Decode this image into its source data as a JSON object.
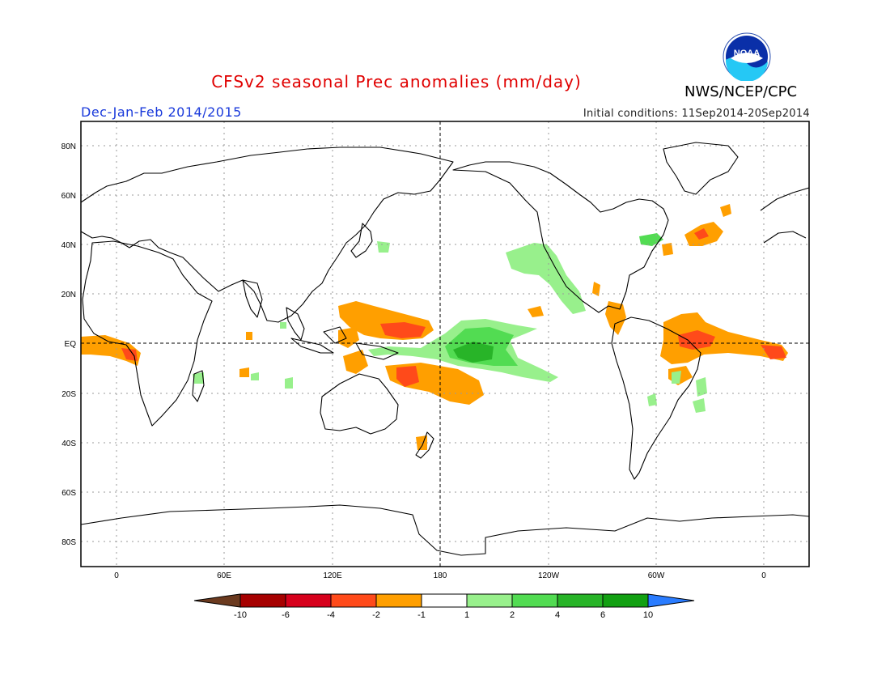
{
  "header": {
    "title": "CFSv2 seasonal Prec anomalies (mm/day)",
    "agency": "NWS/NCEP/CPC",
    "logo_text": "NOAA",
    "period": "Dec-Jan-Feb 2014/2015",
    "initial_conditions": "Initial conditions: 11Sep2014-20Sep2014"
  },
  "map": {
    "lat_labels": [
      "80N",
      "60N",
      "40N",
      "20N",
      "EQ",
      "20S",
      "40S",
      "60S",
      "80S"
    ],
    "lon_labels": [
      "0",
      "60E",
      "120E",
      "180",
      "120W",
      "60W",
      "0"
    ]
  },
  "legend": {
    "colors": [
      "#6b3a1f",
      "#a60000",
      "#d6001c",
      "#ff4a1a",
      "#ff9f00",
      "#ffffff",
      "#98f08c",
      "#52dc52",
      "#28b428",
      "#12a012",
      "#2a7cff"
    ],
    "labels": [
      "-10",
      "-6",
      "-4",
      "-2",
      "-1",
      "1",
      "2",
      "4",
      "6",
      "10"
    ]
  },
  "colors": {
    "map_border": "#000000",
    "title": "#e00000",
    "period": "#1a3adb"
  }
}
